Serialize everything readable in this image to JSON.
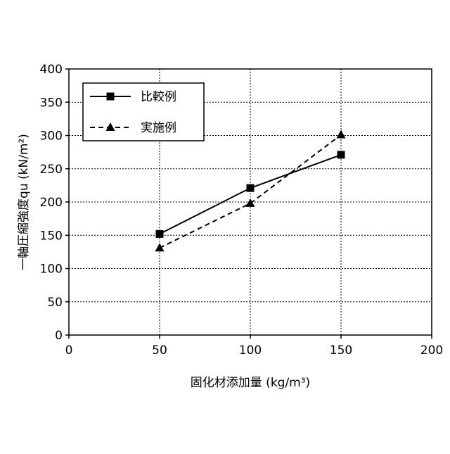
{
  "chart_data": {
    "type": "line",
    "xlabel": "固化材添加量 (kg/m³)",
    "ylabel": "一軸圧縮強度qu (kN/m²)",
    "xlim": [
      0,
      200
    ],
    "ylim": [
      0,
      400
    ],
    "xticks": [
      0,
      50,
      100,
      150,
      200
    ],
    "yticks": [
      0,
      50,
      100,
      150,
      200,
      250,
      300,
      350,
      400
    ],
    "grid": true,
    "legend_position": "top-left",
    "series": [
      {
        "name": "比較例",
        "marker": "square",
        "line_style": "solid",
        "color": "#000000",
        "points": [
          {
            "x": 50,
            "y": 152
          },
          {
            "x": 100,
            "y": 221
          },
          {
            "x": 150,
            "y": 271
          }
        ]
      },
      {
        "name": "実施例",
        "marker": "triangle",
        "line_style": "dashed",
        "color": "#000000",
        "points": [
          {
            "x": 50,
            "y": 131
          },
          {
            "x": 100,
            "y": 198
          },
          {
            "x": 150,
            "y": 301
          }
        ]
      }
    ]
  }
}
